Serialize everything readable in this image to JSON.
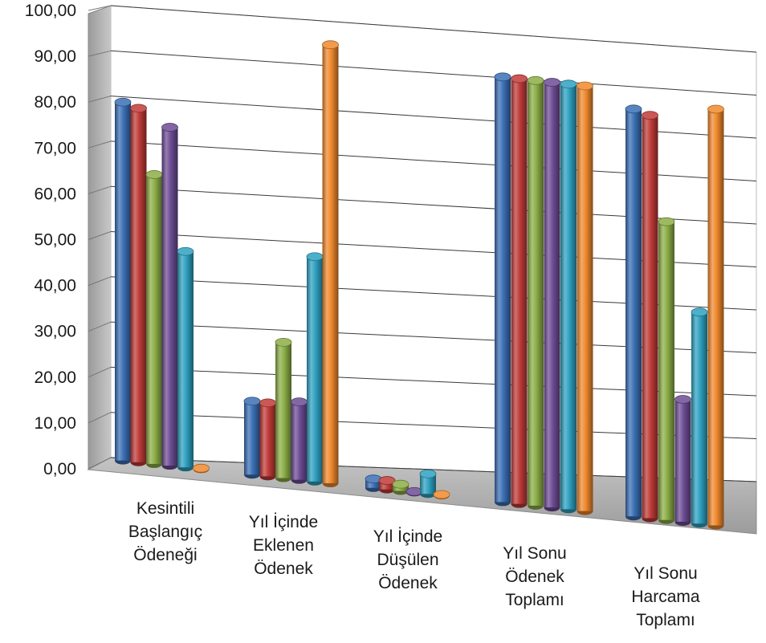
{
  "chart_data": {
    "type": "bar",
    "style": "3d-cylinder",
    "categories": [
      [
        "Kesintili",
        "Başlangıç",
        "Ödeneği"
      ],
      [
        "Yıl İçinde",
        "Eklenen",
        "Ödenek"
      ],
      [
        "Yıl İçinde",
        "Düşülen",
        "Ödenek"
      ],
      [
        "Yıl Sonu",
        "Ödenek",
        "Toplamı"
      ],
      [
        "Yıl Sonu",
        "Harcama",
        "Toplamı"
      ]
    ],
    "series": [
      {
        "color": "#3a6fb5",
        "values": [
          80.5,
          16.5,
          2.0,
          95.5,
          91.5
        ]
      },
      {
        "color": "#bf3b38",
        "values": [
          79.5,
          16.5,
          2.0,
          95.5,
          90.5
        ]
      },
      {
        "color": "#8cae46",
        "values": [
          65.0,
          30.5,
          1.5,
          95.5,
          67.0
        ]
      },
      {
        "color": "#6d4c94",
        "values": [
          76.0,
          17.5,
          0.2,
          95.5,
          27.5
        ]
      },
      {
        "color": "#2ea1c1",
        "values": [
          48.5,
          50.5,
          4.5,
          95.5,
          47.5
        ]
      },
      {
        "color": "#f0892d",
        "values": [
          0.2,
          98.5,
          0.2,
          95.5,
          93.5
        ]
      }
    ],
    "yticks": [
      "0,00",
      "10,00",
      "20,00",
      "30,00",
      "40,00",
      "50,00",
      "60,00",
      "70,00",
      "80,00",
      "90,00",
      "100,00"
    ],
    "ylim": [
      0,
      100
    ],
    "grid": true,
    "legend": "none"
  }
}
